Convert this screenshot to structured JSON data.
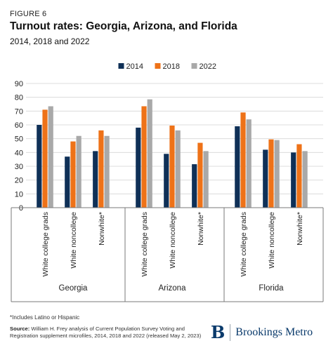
{
  "figure_label": "FIGURE 6",
  "title": "Turnout rates: Georgia, Arizona, and Florida",
  "subtitle": "2014, 2018 and 2022",
  "chart_data": {
    "type": "bar",
    "legend_position": "top-center",
    "grid": true,
    "ylim": [
      0,
      90
    ],
    "y_ticks": [
      0,
      10,
      20,
      30,
      40,
      50,
      60,
      70,
      80,
      90
    ],
    "groups": [
      "Georgia",
      "Arizona",
      "Florida"
    ],
    "subcategories": [
      "White college grads",
      "White noncollege",
      "Nonwhite*"
    ],
    "series": [
      {
        "name": "2014",
        "color": "#0f3057",
        "values": [
          [
            60,
            37,
            41
          ],
          [
            58,
            39,
            31.5
          ],
          [
            59,
            42,
            40
          ]
        ]
      },
      {
        "name": "2018",
        "color": "#ee7218",
        "values": [
          [
            71,
            48,
            56
          ],
          [
            73.5,
            59.5,
            47
          ],
          [
            69,
            49.5,
            46
          ]
        ]
      },
      {
        "name": "2022",
        "color": "#a9a9a9",
        "values": [
          [
            73.5,
            52,
            52
          ],
          [
            78.5,
            56,
            41
          ],
          [
            64,
            49,
            41
          ]
        ]
      }
    ]
  },
  "footnote": "*Includes Latino or Hispanic",
  "source": {
    "label": "Source:",
    "text": "William H. Frey analysis of Current Population Survey Voting and Registration supplement microfiles, 2014, 2018 and 2022 (released May 2, 2023)"
  },
  "brand": {
    "mark": "B",
    "name": "Brookings Metro"
  }
}
